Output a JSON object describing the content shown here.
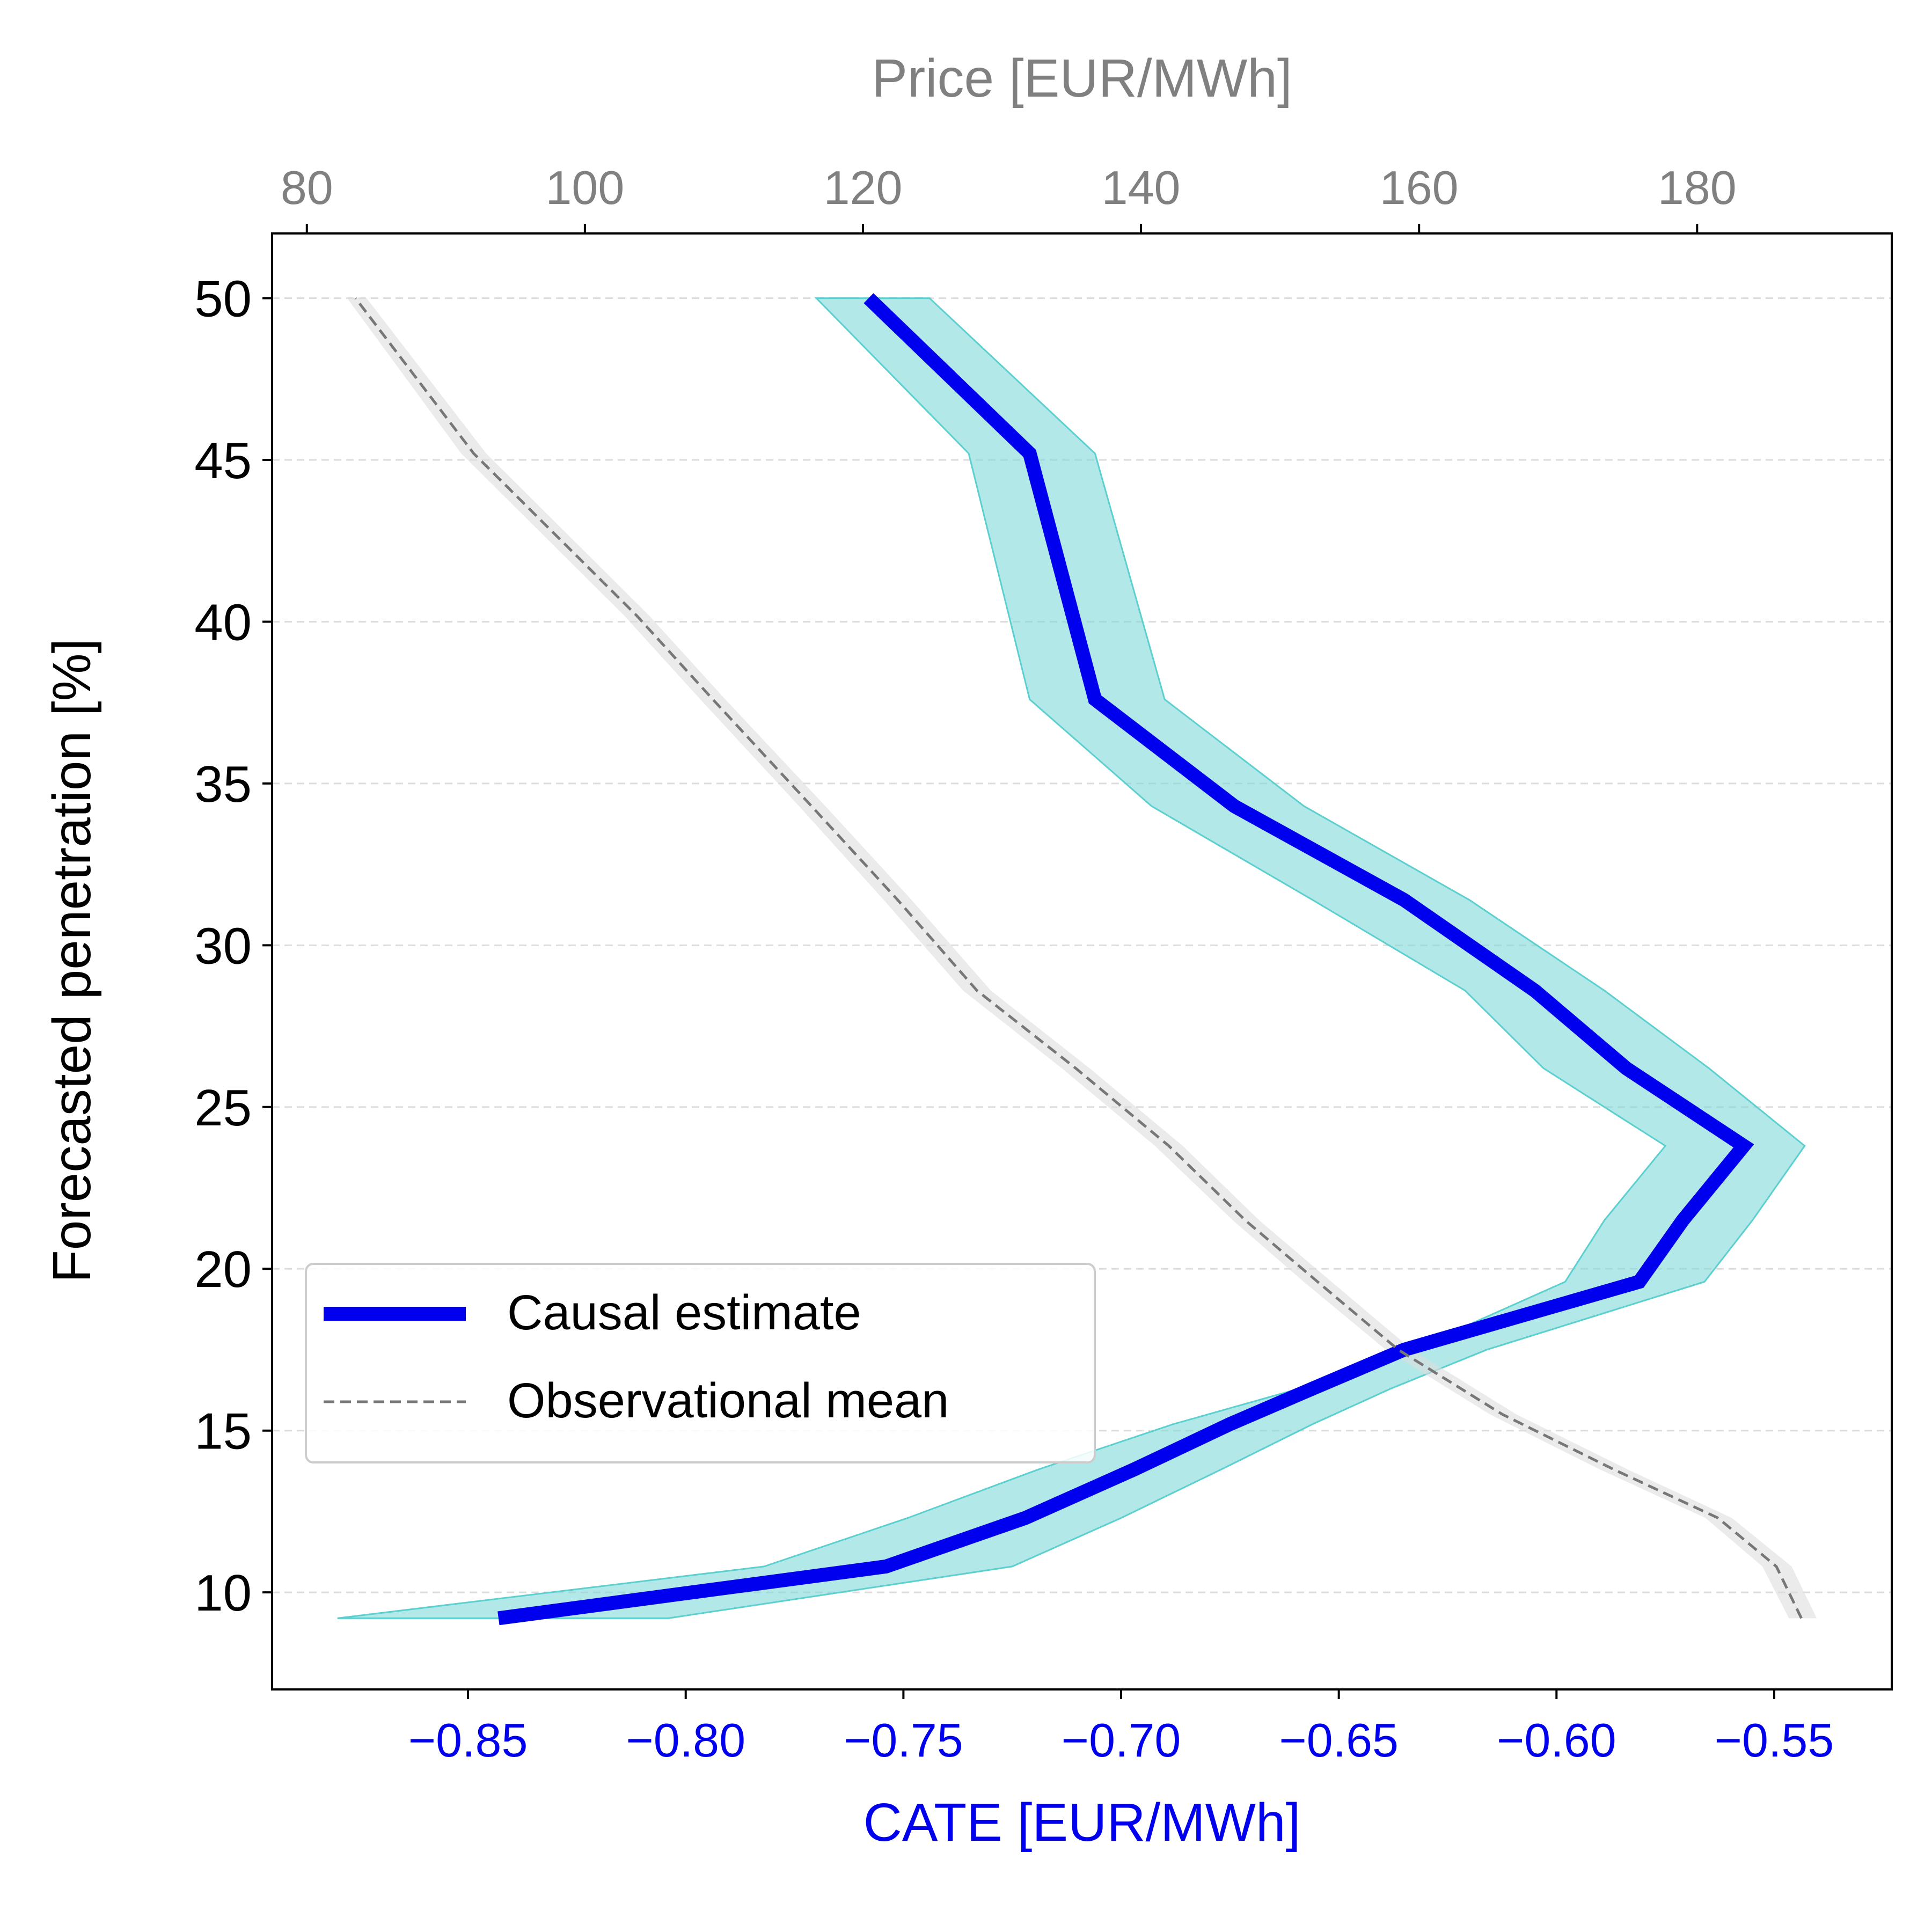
{
  "chart_data": {
    "type": "line",
    "orientation": "horizontal-x-values-vertical-y",
    "ylabel": "Forecasted penetration [%]",
    "xlabel_bottom": "CATE [EUR/MWh]",
    "xlabel_top": "Price [EUR/MWh]",
    "ylim": [
      7.0,
      52.0
    ],
    "xlim_bottom": [
      -0.895,
      -0.523
    ],
    "xlim_top": [
      77.5,
      194.0
    ],
    "yticks": [
      10,
      15,
      20,
      25,
      30,
      35,
      40,
      45,
      50
    ],
    "ytick_labels": [
      "10",
      "15",
      "20",
      "25",
      "30",
      "35",
      "40",
      "45",
      "50"
    ],
    "xticks_bottom": [
      -0.85,
      -0.8,
      -0.75,
      -0.7,
      -0.65,
      -0.6,
      -0.55
    ],
    "xtick_labels_bottom": [
      "−0.85",
      "−0.80",
      "−0.75",
      "−0.70",
      "−0.65",
      "−0.60",
      "−0.55"
    ],
    "xticks_top": [
      80,
      100,
      120,
      140,
      160,
      180
    ],
    "xtick_labels_top": [
      "80",
      "100",
      "120",
      "140",
      "160",
      "180"
    ],
    "grid": "horizontal-dashed",
    "legend_position": "lower-left",
    "colors": {
      "causal": "#0000ee",
      "band": "#7fd8d8",
      "band_edge": "#5ccfcf",
      "observational": "#777777",
      "obs_band": "#dddddd",
      "bottom_axis": "#0000ee",
      "top_axis": "#808080",
      "grid": "#dddddd"
    },
    "series": [
      {
        "name": "Causal estimate",
        "axis": "bottom",
        "y": [
          9.2,
          10.8,
          12.3,
          13.8,
          15.2,
          16.3,
          17.5,
          19.6,
          21.5,
          23.8,
          26.2,
          28.6,
          31.4,
          34.3,
          37.6,
          45.2,
          50.0
        ],
        "x": [
          -0.843,
          -0.754,
          -0.722,
          -0.697,
          -0.675,
          -0.656,
          -0.635,
          -0.581,
          -0.571,
          -0.557,
          -0.584,
          -0.605,
          -0.635,
          -0.674,
          -0.706,
          -0.721,
          -0.758
        ],
        "band_low": [
          -0.88,
          -0.782,
          -0.749,
          -0.719,
          -0.688,
          -0.659,
          -0.633,
          -0.598,
          -0.589,
          -0.575,
          -0.603,
          -0.621,
          -0.656,
          -0.693,
          -0.721,
          -0.735,
          -0.77
        ],
        "band_high": [
          -0.804,
          -0.725,
          -0.7,
          -0.677,
          -0.656,
          -0.638,
          -0.616,
          -0.566,
          -0.555,
          -0.543,
          -0.565,
          -0.589,
          -0.62,
          -0.658,
          -0.69,
          -0.706,
          -0.744
        ]
      },
      {
        "name": "Observational mean",
        "axis": "top",
        "y": [
          9.2,
          10.8,
          12.3,
          13.8,
          15.5,
          17.5,
          19.6,
          21.5,
          23.8,
          26.2,
          28.6,
          31.4,
          34.3,
          37.6,
          40.2,
          45.2,
          50.0
        ],
        "x": [
          187.5,
          185.7,
          181.5,
          174.0,
          166.0,
          158.5,
          152.7,
          147.5,
          142.0,
          135.3,
          128.2,
          122.5,
          116.3,
          109.2,
          103.7,
          92.0,
          83.5
        ],
        "band_low": [
          186.6,
          184.7,
          180.6,
          173.0,
          165.1,
          157.6,
          151.7,
          146.6,
          141.0,
          134.3,
          127.2,
          121.5,
          115.4,
          108.3,
          102.8,
          91.1,
          82.9
        ],
        "band_high": [
          188.6,
          186.8,
          182.5,
          175.0,
          167.0,
          159.5,
          153.7,
          148.5,
          143.0,
          136.3,
          129.2,
          123.5,
          117.3,
          110.1,
          104.6,
          92.9,
          84.3
        ]
      }
    ]
  }
}
